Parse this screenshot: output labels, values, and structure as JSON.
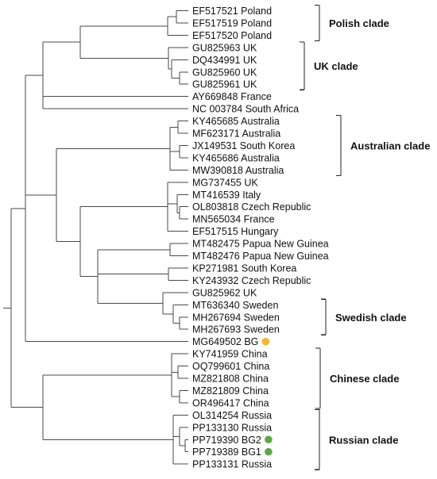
{
  "figure": {
    "leaves": [
      {
        "text": "EF517521 Poland"
      },
      {
        "text": "EF517519 Poland"
      },
      {
        "text": "EF517520 Poland"
      },
      {
        "text": "GU825963 UK"
      },
      {
        "text": "DQ434991 UK"
      },
      {
        "text": "GU825960 UK"
      },
      {
        "text": "GU825961 UK"
      },
      {
        "text": "AY669848 France"
      },
      {
        "text": "NC 003784 South Africa"
      },
      {
        "text": "KY465685 Australia"
      },
      {
        "text": "MF623171 Australia"
      },
      {
        "text": "JX149531 South Korea"
      },
      {
        "text": "KY465686 Australia"
      },
      {
        "text": "MW390818 Australia"
      },
      {
        "text": "MG737455 UK"
      },
      {
        "text": "MT416539 Italy"
      },
      {
        "text": "OL803818 Czech Republic"
      },
      {
        "text": "MN565034 France"
      },
      {
        "text": "EF517515 Hungary"
      },
      {
        "text": "MT482475 Papua New Guinea"
      },
      {
        "text": "MT482476 Papua New Guinea"
      },
      {
        "text": "KP271981 South Korea"
      },
      {
        "text": "KY243932 Czech Republic"
      },
      {
        "text": "GU825962 UK"
      },
      {
        "text": "MT636340 Sweden"
      },
      {
        "text": "MH267694 Sweden"
      },
      {
        "text": "MH267693 Sweden"
      },
      {
        "text": "MG649502 BG",
        "marker": "#f5b731"
      },
      {
        "text": "KY741959 China"
      },
      {
        "text": "OQ799601 China"
      },
      {
        "text": "MZ821808 China"
      },
      {
        "text": "MZ821809 China"
      },
      {
        "text": "OR496417 China"
      },
      {
        "text": "OL314254 Russia"
      },
      {
        "text": "PP133130 Russia"
      },
      {
        "text": "PP719390 BG2",
        "marker": "#5aa845"
      },
      {
        "text": "PP719389 BG1",
        "marker": "#5aa845"
      },
      {
        "text": "PP133131 Russia"
      }
    ],
    "clades": [
      {
        "label": "Polish clade"
      },
      {
        "label": "UK clade"
      },
      {
        "label": "Australian clade"
      },
      {
        "label": "Swedish clade"
      },
      {
        "label": "Chinese clade"
      },
      {
        "label": "Russian clade"
      }
    ],
    "colors": {
      "branch": "#4a4a4a",
      "bracket": "#222222",
      "text": "#111111",
      "bg_marker": "#f5b731",
      "bg1_bg2_marker": "#5aa845"
    }
  }
}
